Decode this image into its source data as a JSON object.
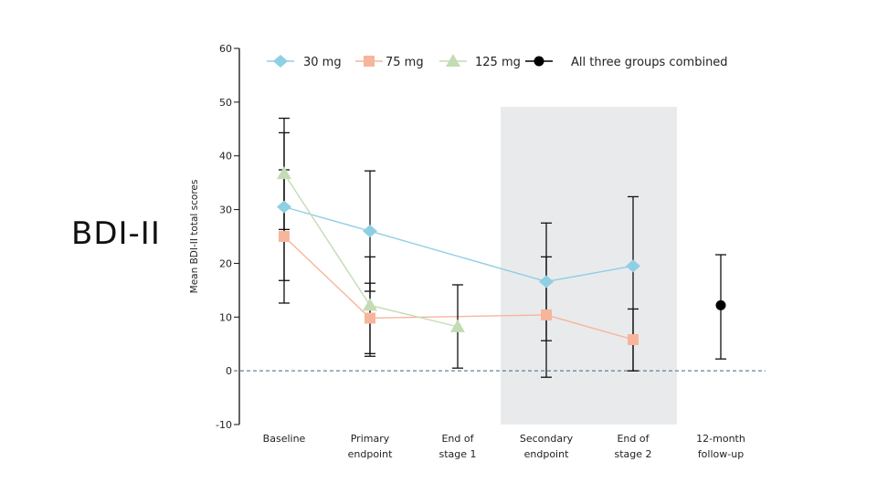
{
  "slide": {
    "title": "BDI-II"
  },
  "chart_data": {
    "type": "line",
    "title": "",
    "xlabel": "",
    "ylabel": "Mean BDI-II total scores",
    "ylim": [
      -10,
      60
    ],
    "yticks": [
      60,
      50,
      40,
      30,
      20,
      10,
      0,
      -10
    ],
    "reference_line": {
      "y": 0,
      "style": "dashed",
      "color": "#3a6a7a"
    },
    "categories": [
      [
        "Baseline"
      ],
      [
        "Primary",
        "endpoint"
      ],
      [
        "End of",
        "stage 1"
      ],
      [
        "Secondary",
        "endpoint"
      ],
      [
        "End of",
        "stage 2"
      ],
      [
        "12-month",
        "follow-up"
      ]
    ],
    "shaded_region": {
      "from_category": 3,
      "to_category": 4,
      "color": "#e9eaec"
    },
    "legend": {
      "position": "top",
      "entries": [
        "30 mg",
        "75 mg",
        "125 mg",
        "All three groups combined"
      ]
    },
    "series": [
      {
        "name": "30 mg",
        "marker": "diamond",
        "color": "#8ecfe3",
        "points": [
          {
            "x": 0,
            "y": 30.5,
            "lo": 16.8,
            "hi": 44.3
          },
          {
            "x": 1,
            "y": 26.0,
            "lo": 14.8,
            "hi": 37.2
          },
          {
            "x": 3,
            "y": 16.6,
            "lo": 5.6,
            "hi": 27.5
          },
          {
            "x": 4,
            "y": 19.5,
            "lo": 0.0,
            "hi": 32.4
          }
        ]
      },
      {
        "name": "75 mg",
        "marker": "square",
        "color": "#f7b59b",
        "points": [
          {
            "x": 0,
            "y": 25.0,
            "lo": 12.6,
            "hi": 37.4
          },
          {
            "x": 1,
            "y": 9.8,
            "lo": 3.2,
            "hi": 16.3
          },
          {
            "x": 3,
            "y": 10.4,
            "lo": -1.2,
            "hi": 21.2
          },
          {
            "x": 4,
            "y": 5.8,
            "lo": 0.0,
            "hi": 11.5
          }
        ]
      },
      {
        "name": "125 mg",
        "marker": "triangle",
        "color": "#c3dcb4",
        "points": [
          {
            "x": 0,
            "y": 36.7,
            "lo": 26.3,
            "hi": 47.0
          },
          {
            "x": 1,
            "y": 12.2,
            "lo": 2.7,
            "hi": 21.2
          },
          {
            "x": 2,
            "y": 8.2,
            "lo": 0.5,
            "hi": 16.0
          }
        ]
      },
      {
        "name": "All three groups combined",
        "marker": "circle",
        "color": "#000000",
        "points": [
          {
            "x": 5,
            "y": 12.2,
            "lo": 2.2,
            "hi": 21.6
          }
        ]
      }
    ]
  }
}
